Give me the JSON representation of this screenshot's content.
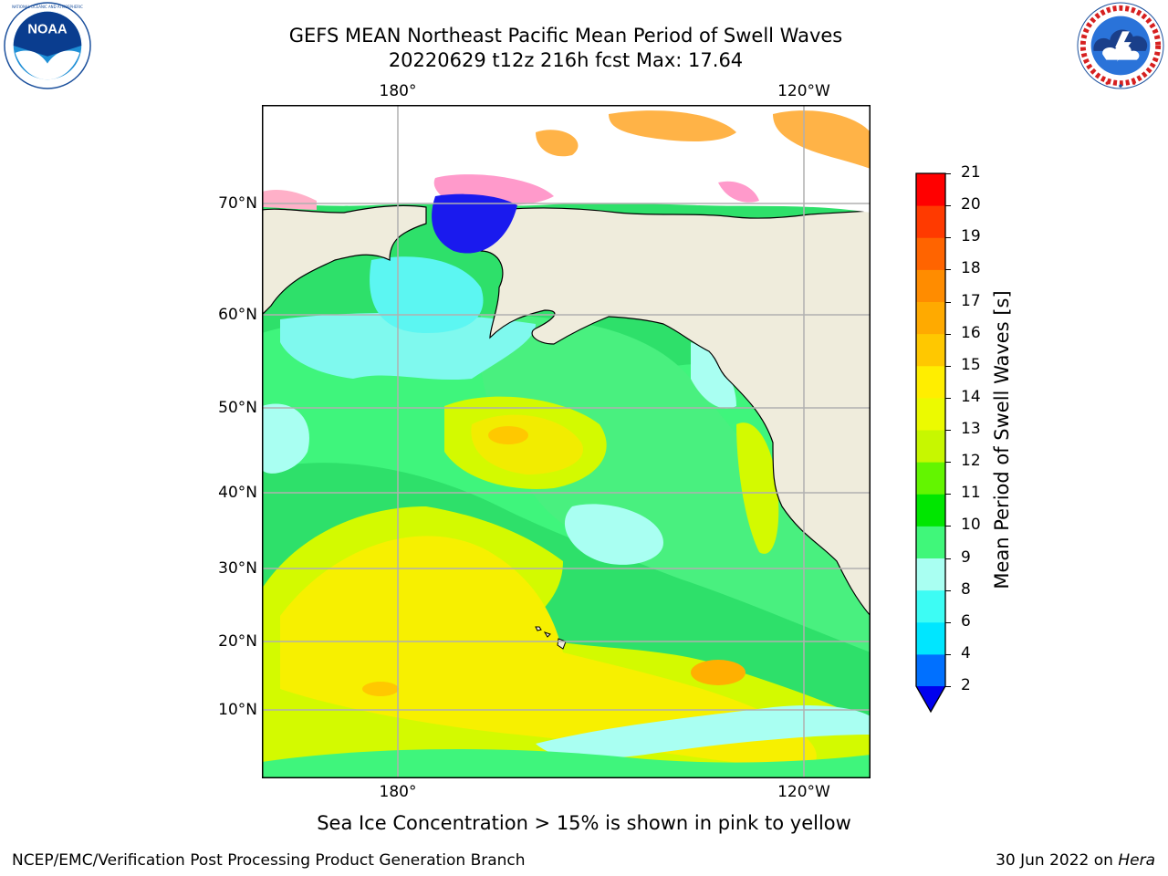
{
  "header": {
    "title": "GEFS MEAN Northeast Pacific Mean Period of Swell Waves",
    "subtitle": "20220629 t12z 216h fcst   Max: 17.64"
  },
  "logos": {
    "noaa": {
      "icon": "noaa-logo",
      "text": "NOAA",
      "ring_text": "NATIONAL OCEANIC AND ATMOSPHERIC ADMINISTRATION · U.S. DEPARTMENT OF COMMERCE"
    },
    "nws": {
      "icon": "nws-logo",
      "ring_text": "NATIONAL WEATHER SERVICE"
    }
  },
  "map": {
    "lat_labels": [
      "70°N",
      "60°N",
      "50°N",
      "40°N",
      "30°N",
      "20°N",
      "10°N"
    ],
    "lon_labels_top": [
      "180°",
      "120°W"
    ],
    "lon_labels_bottom": [
      "180°",
      "120°W"
    ],
    "grid": true,
    "land_color": "#efecdc",
    "coast_color": "#000000"
  },
  "colorbar": {
    "label": "Mean Period of Swell Waves [s]",
    "ticks": [
      "21",
      "20",
      "19",
      "18",
      "17",
      "16",
      "15",
      "14",
      "13",
      "12",
      "11",
      "10",
      "9",
      "8",
      "6",
      "4",
      "2"
    ],
    "colors_bottom_to_top": [
      "#0070ff",
      "#00e6ff",
      "#3dfcf4",
      "#a9fff2",
      "#40f77a",
      "#00e600",
      "#63f500",
      "#c7f700",
      "#ecfa00",
      "#ffee00",
      "#ffc800",
      "#ffaa00",
      "#ff8c00",
      "#ff6400",
      "#ff3a00",
      "#ff0000"
    ],
    "extend_color": "#0000ee"
  },
  "note": "Sea Ice Concentration > 15% is shown in pink to yellow",
  "footer": {
    "left": "NCEP/EMC/Verification Post Processing Product Generation Branch",
    "date": "30 Jun 2022 on ",
    "host": "Hera"
  }
}
